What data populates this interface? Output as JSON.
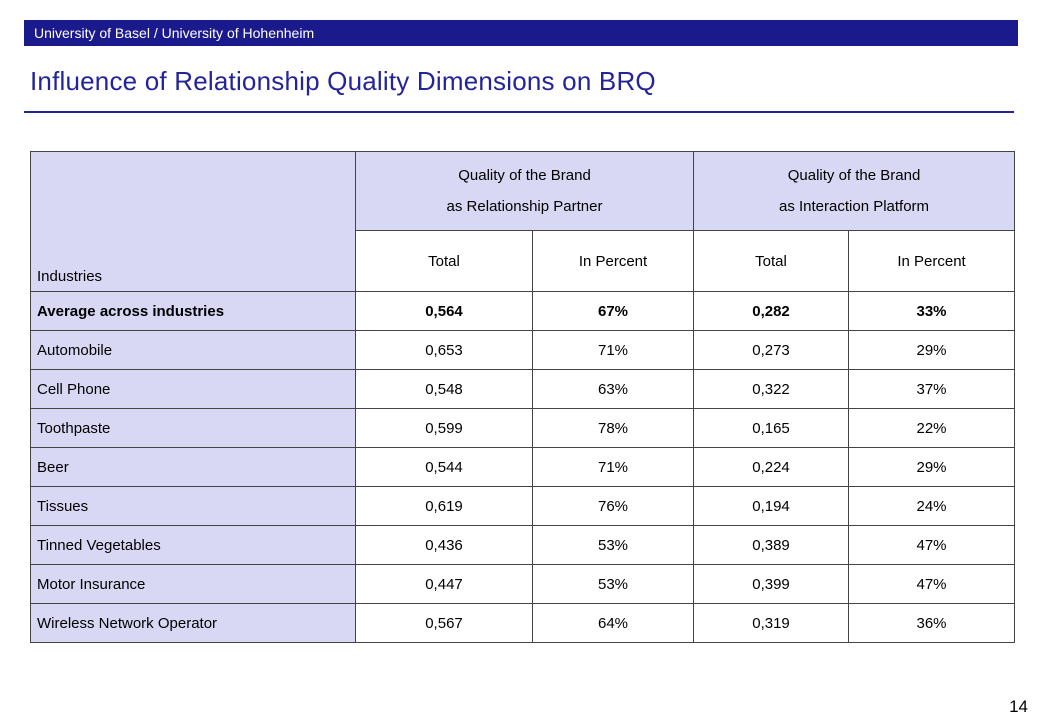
{
  "header": {
    "institution": "University of Basel / University of Hohenheim"
  },
  "title": "Influence of Relationship Quality Dimensions on BRQ",
  "table": {
    "industries_label": "Industries",
    "groups": [
      {
        "line1": "Quality of the Brand",
        "line2": "as Relationship Partner"
      },
      {
        "line1": "Quality of the Brand",
        "line2": "as Interaction Platform"
      }
    ],
    "subheaders": [
      "Total",
      "In Percent",
      "Total",
      "In Percent"
    ],
    "rows": [
      {
        "label": "Average across industries",
        "values": [
          "0,564",
          "67%",
          "0,282",
          "33%"
        ]
      },
      {
        "label": "Automobile",
        "values": [
          "0,653",
          "71%",
          "0,273",
          "29%"
        ]
      },
      {
        "label": "Cell Phone",
        "values": [
          "0,548",
          "63%",
          "0,322",
          "37%"
        ]
      },
      {
        "label": "Toothpaste",
        "values": [
          "0,599",
          "78%",
          "0,165",
          "22%"
        ]
      },
      {
        "label": "Beer",
        "values": [
          "0,544",
          "71%",
          "0,224",
          "29%"
        ]
      },
      {
        "label": "Tissues",
        "values": [
          "0,619",
          "76%",
          "0,194",
          "24%"
        ]
      },
      {
        "label": "Tinned Vegetables",
        "values": [
          "0,436",
          "53%",
          "0,389",
          "47%"
        ]
      },
      {
        "label": "Motor Insurance",
        "values": [
          "0,447",
          "53%",
          "0,399",
          "47%"
        ]
      },
      {
        "label": "Wireless Network Operator",
        "values": [
          "0,567",
          "64%",
          "0,319",
          "36%"
        ]
      }
    ]
  },
  "page_number": "14",
  "colors": {
    "header_bar": "#1a1a8c",
    "title": "#24249a",
    "header_cell": "#d8d8f4"
  }
}
